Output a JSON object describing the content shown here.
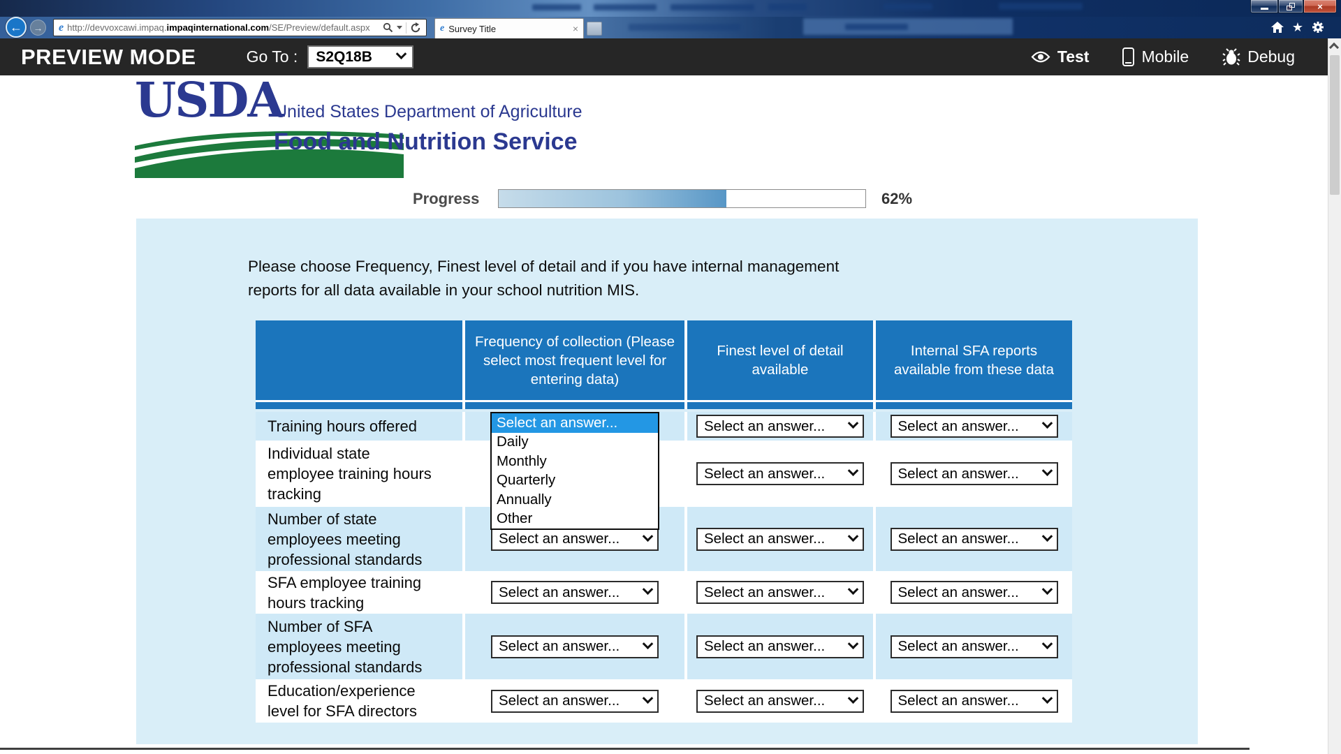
{
  "browser": {
    "url": {
      "prefix": "http://devvoxcawi.impaq.",
      "bold": "impaqinternational.com",
      "suffix": "/SE/Preview/default.aspx"
    },
    "tab_title": "Survey Title",
    "ie_glyph": "e",
    "back_glyph": "←",
    "forward_glyph": "→",
    "tab_close_glyph": "×",
    "close_glyph": "×",
    "star_glyph": "★"
  },
  "preview_bar": {
    "mode_title": "PREVIEW MODE",
    "goto_label": "Go To :",
    "goto_value": "S2Q18B",
    "test_label": "Test",
    "mobile_label": "Mobile",
    "debug_label": "Debug"
  },
  "logo": {
    "acronym": "USDA",
    "department": "United States Department of Agriculture",
    "service": "Food and Nutrition Service"
  },
  "progress": {
    "label": "Progress",
    "percent": 62,
    "percent_label": "62%"
  },
  "survey": {
    "question": "Please choose Frequency, Finest level of detail and if you have internal management reports for all data available in your school nutrition MIS."
  },
  "table": {
    "headers": [
      "",
      "Frequency of collection (Please select most frequent level for entering data)",
      "Finest level of detail available",
      "Internal SFA reports available from these data"
    ],
    "rows": [
      "Training hours offered",
      "Individual state employee training hours tracking",
      "Number of state employees meeting professional standards",
      "SFA employee training hours tracking",
      "Number of SFA employees meeting professional standards",
      "Education/experience level for SFA directors"
    ],
    "select_placeholder": "Select an answer..."
  },
  "dropdown": {
    "options": [
      "Select an answer...",
      "Daily",
      "Monthly",
      "Quarterly",
      "Annually",
      "Other"
    ],
    "selected": "Select an answer..."
  },
  "colors": {
    "header_blue": "#1B75BC",
    "row_blue": "#CFE9F7",
    "panel_blue": "#D9EEF8",
    "highlight_blue": "#2397E4",
    "usda_blue": "#2B3990",
    "usda_green": "#1C7A3C",
    "preview_bar_black": "#262626"
  }
}
